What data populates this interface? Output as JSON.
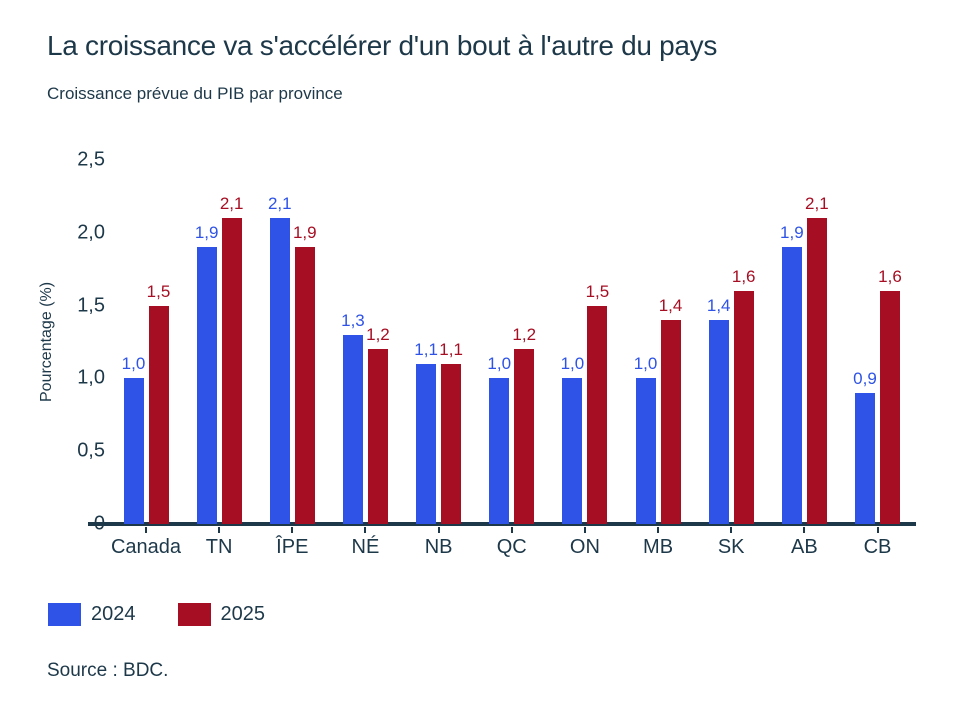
{
  "header": {
    "title": "La croissance va s'accélérer d'un bout à l'autre du pays",
    "subtitle": "Croissance prévue du PIB par province"
  },
  "chart_data": {
    "type": "bar",
    "title": "La croissance va s'accélérer d'un bout à l'autre du pays",
    "subtitle": "Croissance prévue du PIB par province",
    "categories": [
      "Canada",
      "TN",
      "ÎPE",
      "NÉ",
      "NB",
      "QC",
      "ON",
      "MB",
      "SK",
      "AB",
      "CB"
    ],
    "series": [
      {
        "name": "2024",
        "color": "#2E53E6",
        "values": [
          1.0,
          1.9,
          2.1,
          1.3,
          1.1,
          1.0,
          1.0,
          1.0,
          1.4,
          1.9,
          0.9
        ]
      },
      {
        "name": "2025",
        "color": "#A60E23",
        "values": [
          1.5,
          2.1,
          1.9,
          1.2,
          1.1,
          1.2,
          1.5,
          1.4,
          1.6,
          2.1,
          1.6
        ]
      }
    ],
    "xlabel": "",
    "ylabel": "Pourcentage (%)",
    "ylim": [
      0,
      2.5
    ],
    "yticks": [
      2.5,
      2.0,
      1.5,
      1.0,
      0.5,
      0
    ],
    "ytick_labels": [
      "2,5",
      "2,0",
      "1,5",
      "1,0",
      "0,5",
      "0"
    ],
    "decimal_separator": ",",
    "grid": false,
    "data_labels": true,
    "legend_position": "bottom-left",
    "axis_color": "#1d3849",
    "text_color": "#1d3849"
  },
  "footer": {
    "source": "Source : BDC."
  }
}
